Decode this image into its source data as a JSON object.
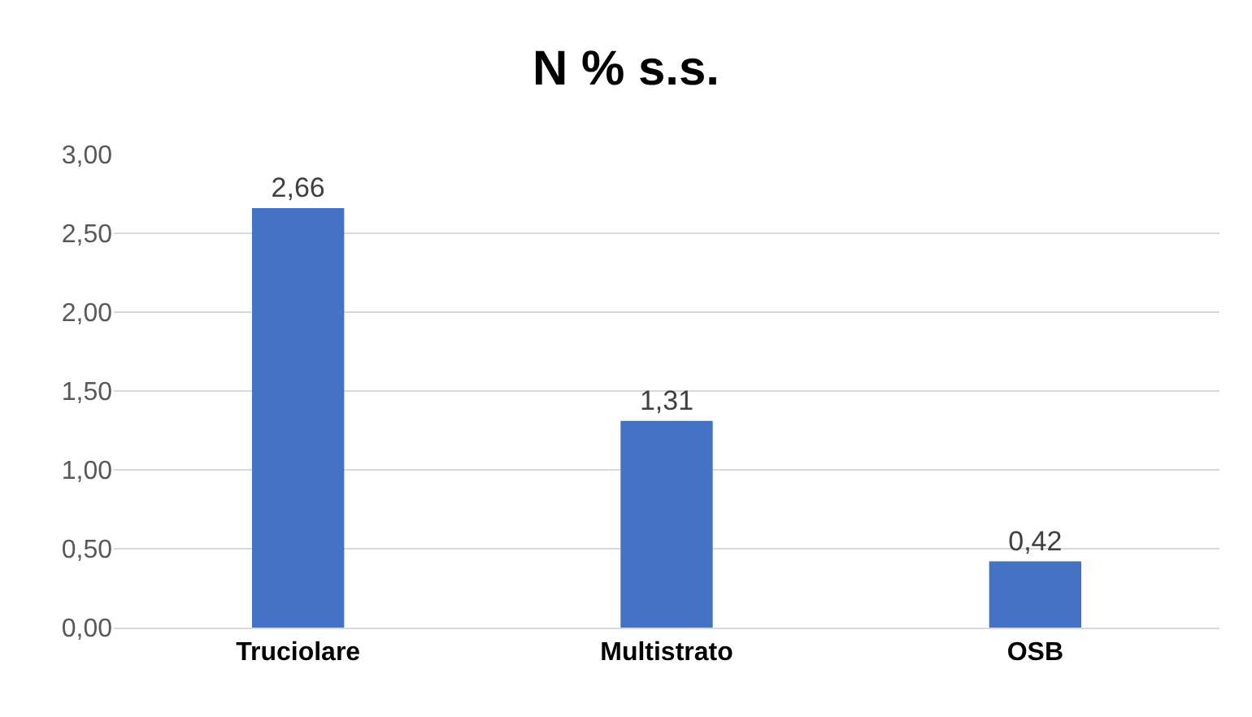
{
  "chart_data": {
    "type": "bar",
    "title": "N % s.s.",
    "categories": [
      "Truciolare",
      "Multistrato",
      "OSB"
    ],
    "values": [
      2.66,
      1.31,
      0.42
    ],
    "value_labels": [
      "2,66",
      "1,31",
      "0,42"
    ],
    "color": "#4472c4",
    "ylim": [
      0,
      3
    ],
    "yticks": [
      {
        "value": 0,
        "label": "0,00"
      },
      {
        "value": 0.5,
        "label": "0,50"
      },
      {
        "value": 1,
        "label": "1,00"
      },
      {
        "value": 1.5,
        "label": "1,50"
      },
      {
        "value": 2,
        "label": "2,00"
      },
      {
        "value": 2.5,
        "label": "2,50"
      },
      {
        "value": 3,
        "label": "3,00"
      }
    ],
    "grid": "y"
  }
}
